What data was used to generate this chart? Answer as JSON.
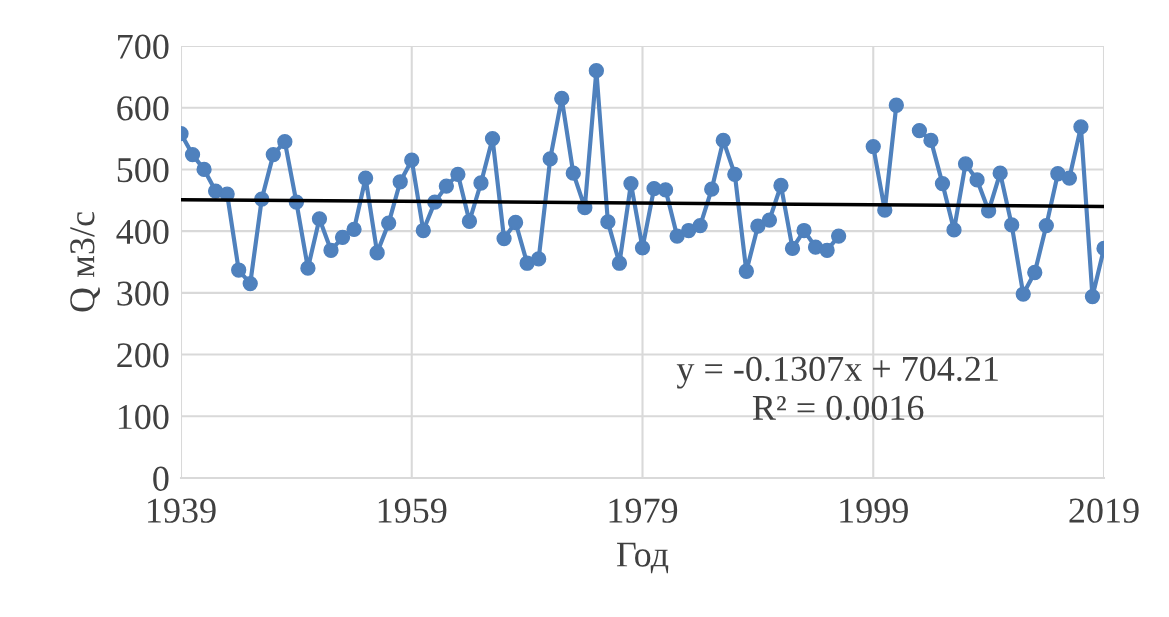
{
  "chart_data": {
    "type": "line",
    "xlabel": "Год",
    "ylabel": "Q м3/с",
    "x": [
      1939,
      1940,
      1941,
      1942,
      1943,
      1944,
      1945,
      1946,
      1947,
      1948,
      1949,
      1950,
      1951,
      1952,
      1953,
      1954,
      1955,
      1956,
      1957,
      1958,
      1959,
      1960,
      1961,
      1962,
      1963,
      1964,
      1965,
      1966,
      1967,
      1968,
      1969,
      1970,
      1971,
      1972,
      1973,
      1974,
      1975,
      1976,
      1977,
      1978,
      1979,
      1980,
      1981,
      1982,
      1983,
      1984,
      1985,
      1986,
      1987,
      1988,
      1989,
      1990,
      1991,
      1992,
      1993,
      1994,
      1995,
      1996,
      1997,
      1998,
      1999,
      2000,
      2001,
      2002,
      2003,
      2004,
      2005,
      2006,
      2007,
      2008,
      2009,
      2010,
      2011,
      2012,
      2013,
      2014,
      2015,
      2016,
      2017,
      2018,
      2019
    ],
    "series": [
      {
        "color": "#4f81bd",
        "marker": "circle",
        "values": [
          558,
          524,
          500,
          465,
          460,
          337,
          315,
          452,
          524,
          545,
          447,
          340,
          420,
          369,
          390,
          403,
          486,
          365,
          413,
          480,
          515,
          401,
          447,
          473,
          492,
          416,
          478,
          550,
          388,
          414,
          348,
          355,
          517,
          615,
          494,
          438,
          660,
          415,
          348,
          477,
          373,
          469,
          467,
          392,
          401,
          409,
          468,
          547,
          492,
          335,
          408,
          418,
          474,
          372,
          401,
          374,
          369,
          392,
          null,
          null,
          537,
          434,
          604,
          null,
          563,
          547,
          477,
          402,
          509,
          483,
          433,
          494,
          410,
          298,
          333,
          409,
          493,
          486,
          569,
          294,
          372
        ]
      },
      {
        "type": "line",
        "color": "#000000",
        "marker": "none",
        "x": [
          1939,
          2019
        ],
        "values": [
          451,
          440
        ]
      }
    ],
    "xlim": [
      1939,
      2019
    ],
    "xticks": [
      1939,
      1959,
      1979,
      1999,
      2019
    ],
    "ylim": [
      0,
      700
    ],
    "yticks": [
      0,
      100,
      200,
      300,
      400,
      500,
      600,
      700
    ],
    "grid": true,
    "annotations": [
      "y = -0.1307x + 704.21",
      "R² = 0.0016"
    ]
  }
}
